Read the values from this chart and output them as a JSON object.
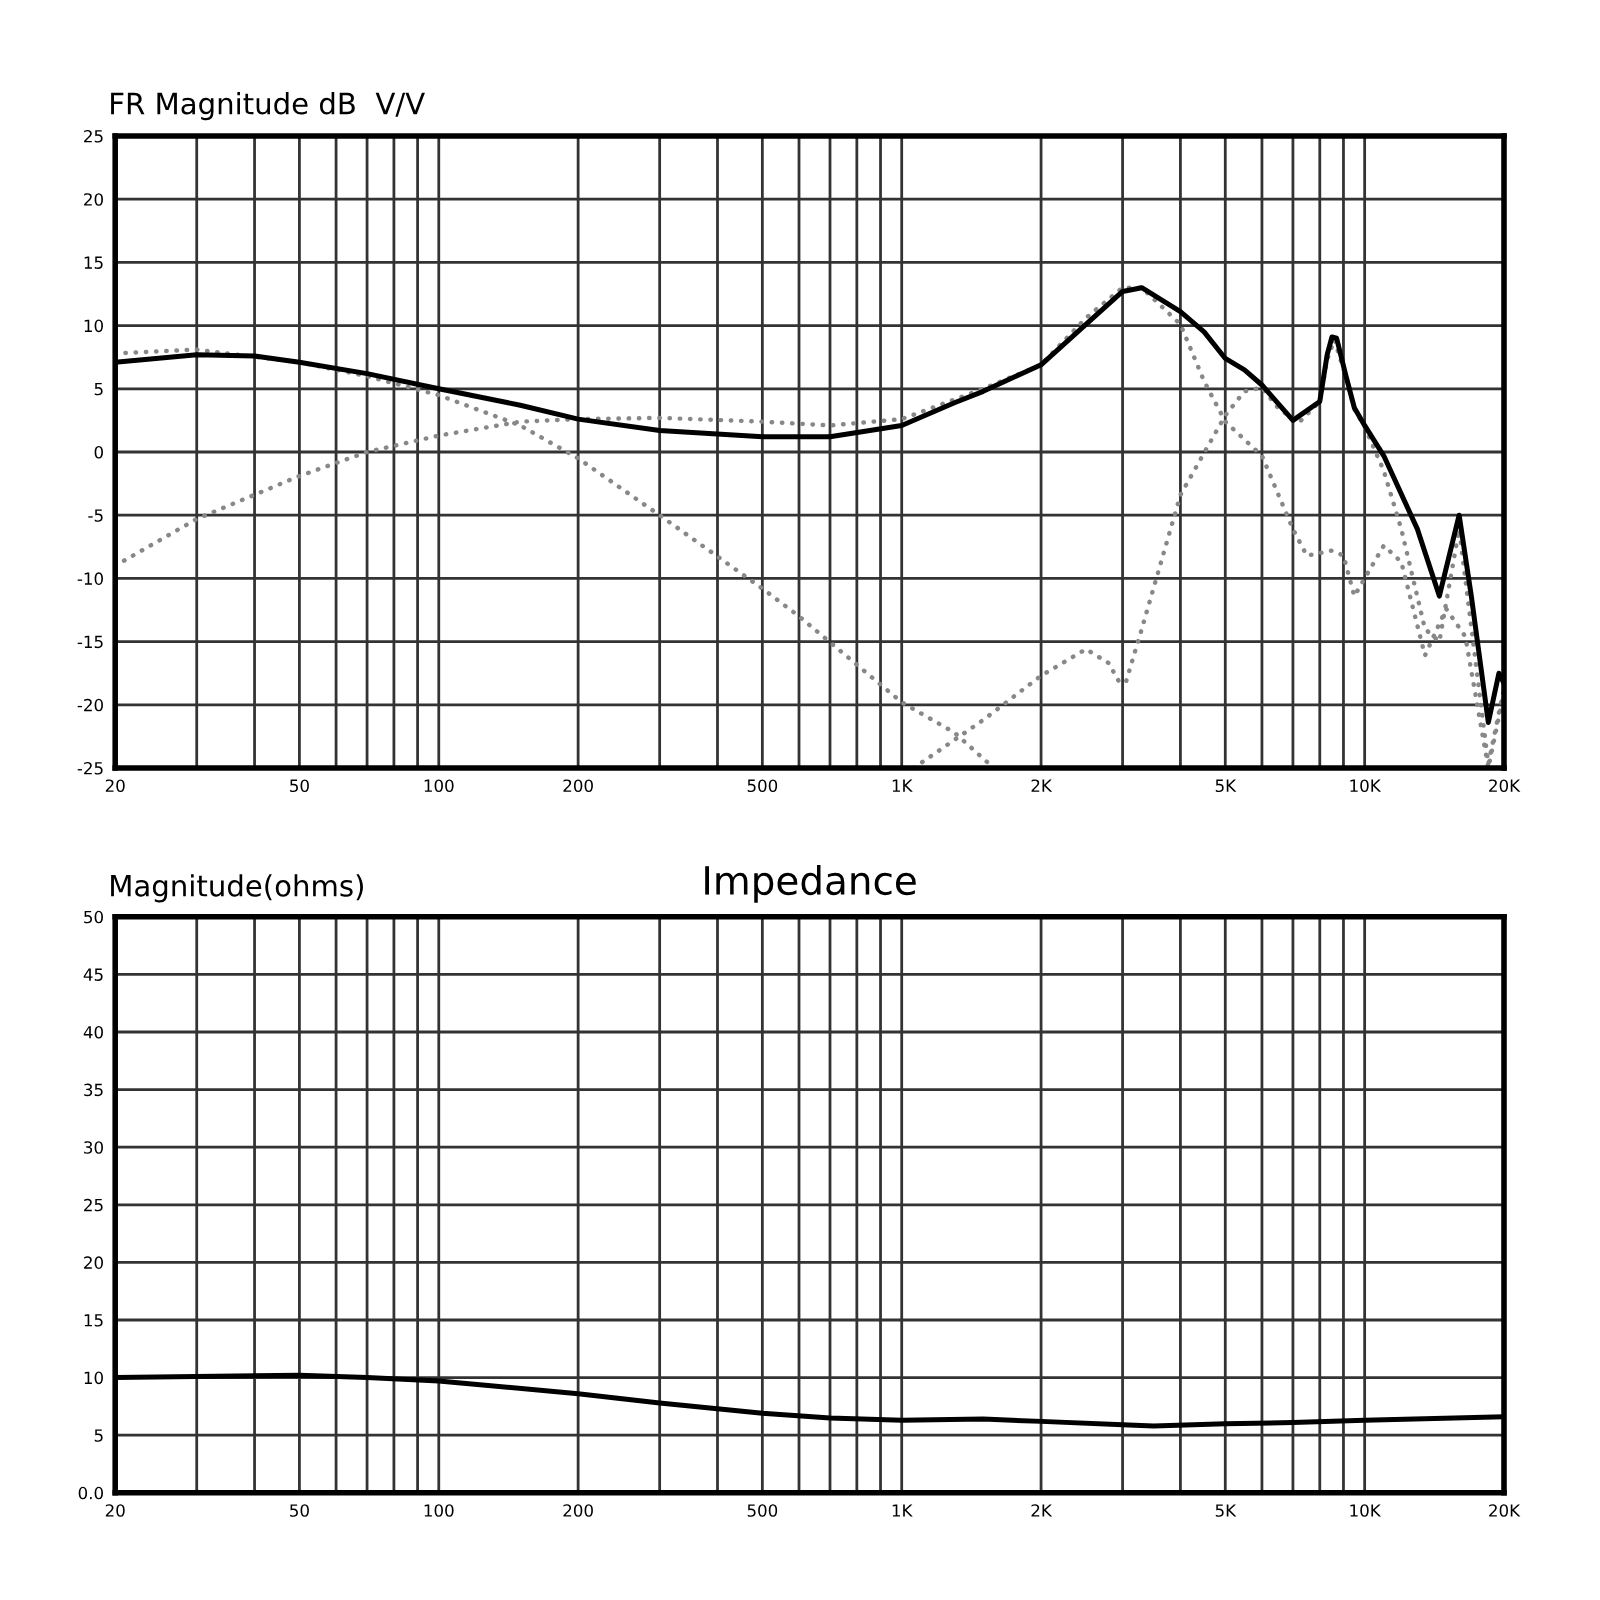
{
  "chart_data": [
    {
      "type": "line",
      "ylabel": "FR Magnitude dB  V/V",
      "log": "x",
      "grid": true,
      "xlim": [
        20,
        20000
      ],
      "ylim": [
        -25,
        25
      ],
      "xticks": [
        20,
        {
          "value": 30,
          "label": null
        },
        {
          "value": 40,
          "label": null
        },
        50,
        {
          "value": 60,
          "label": null
        },
        {
          "value": 70,
          "label": null
        },
        {
          "value": 80,
          "label": null
        },
        {
          "value": 90,
          "label": null
        },
        100,
        200,
        {
          "value": 300,
          "label": null
        },
        {
          "value": 400,
          "label": null
        },
        500,
        {
          "value": 600,
          "label": null
        },
        {
          "value": 700,
          "label": null
        },
        {
          "value": 800,
          "label": null
        },
        {
          "value": 900,
          "label": null
        },
        {
          "value": 1000,
          "label": "1K"
        },
        {
          "value": 2000,
          "label": "2K"
        },
        {
          "value": 3000,
          "label": null
        },
        {
          "value": 4000,
          "label": null
        },
        {
          "value": 5000,
          "label": "5K"
        },
        {
          "value": 6000,
          "label": null
        },
        {
          "value": 7000,
          "label": null
        },
        {
          "value": 8000,
          "label": null
        },
        {
          "value": 9000,
          "label": null
        },
        {
          "value": 10000,
          "label": "10K"
        },
        {
          "value": 20000,
          "label": "20K"
        }
      ],
      "yticks": [
        25,
        20,
        15,
        10,
        5,
        0,
        -5,
        -10,
        -15,
        -20,
        -25
      ],
      "series": [
        {
          "color": "#888888",
          "line_style": "dotted",
          "x": [
            20,
            30,
            50,
            70,
            100,
            150,
            200,
            300,
            500,
            600,
            1000,
            1300,
            1580
          ],
          "values": [
            7.8,
            8.1,
            7.1,
            6.0,
            4.5,
            2.1,
            -0.5,
            -5.0,
            -10.8,
            -13.0,
            -19.8,
            -22.2,
            -25
          ]
        },
        {
          "color": "#888888",
          "line_style": "dotted",
          "x": [
            20,
            30,
            50,
            70,
            100,
            150,
            200,
            300,
            500,
            700,
            1000,
            1500,
            2000,
            2500,
            3000,
            3300,
            4000,
            4500,
            5000,
            6000,
            7000,
            7500,
            8500,
            9000,
            9500,
            11000,
            12000,
            13500,
            15000,
            16500,
            18500,
            20000
          ],
          "values": [
            -9.0,
            -5.3,
            -1.9,
            0,
            1.3,
            2.4,
            2.6,
            2.7,
            2.4,
            2.1,
            2.6,
            5.0,
            6.9,
            10.6,
            13.0,
            13.0,
            10.1,
            5.6,
            2.4,
            -0.3,
            -6.1,
            -8.2,
            -7.8,
            -8.2,
            -11.4,
            -7.4,
            -8.7,
            -16.1,
            -12.4,
            -14.6,
            -25,
            -19.0
          ]
        },
        {
          "color": "#888888",
          "line_style": "dotted",
          "x": [
            1062,
            1500,
            2000,
            2500,
            2800,
            2950,
            3050,
            3300,
            4000,
            5000,
            5500,
            6000,
            6500,
            7200,
            8000,
            8300,
            8600,
            9100,
            9500,
            10000,
            11000,
            12000,
            13500,
            14500,
            16000,
            18500,
            20000
          ],
          "values": [
            -25,
            -21.2,
            -17.7,
            -15.6,
            -16.7,
            -18.2,
            -18.2,
            -14.0,
            -3.4,
            2.9,
            4.8,
            5.1,
            3.5,
            2.3,
            4.0,
            7.3,
            8.9,
            6.0,
            3.4,
            2.0,
            -1.5,
            -6.1,
            -14.0,
            -15.0,
            -6.1,
            -24.7,
            -18.7
          ]
        },
        {
          "color": "#000000",
          "line_style": "solid",
          "x": [
            20,
            30,
            40,
            50,
            70,
            100,
            150,
            200,
            300,
            500,
            700,
            1000,
            1300,
            1500,
            2000,
            2500,
            3000,
            3300,
            4000,
            4500,
            5000,
            5500,
            6000,
            7000,
            8000,
            8300,
            8500,
            8700,
            9100,
            9500,
            10000,
            11000,
            13000,
            14500,
            16000,
            17000,
            18500,
            19500,
            20000
          ],
          "values": [
            7.1,
            7.7,
            7.6,
            7.1,
            6.2,
            5.0,
            3.7,
            2.6,
            1.7,
            1.2,
            1.2,
            2.1,
            3.9,
            4.8,
            6.9,
            10.1,
            12.7,
            13.0,
            11.1,
            9.5,
            7.4,
            6.5,
            5.3,
            2.5,
            4.0,
            7.7,
            9.1,
            9.0,
            6.1,
            3.5,
            2.1,
            -0.3,
            -6.1,
            -11.4,
            -5.0,
            -11.4,
            -21.4,
            -17.5,
            -18.3
          ]
        }
      ]
    },
    {
      "type": "line",
      "title": "Impedance",
      "ylabel": "Magnitude(ohms)",
      "log": "x",
      "grid": true,
      "xlim": [
        20,
        20000
      ],
      "ylim": [
        0,
        50
      ],
      "xticks": [
        20,
        {
          "value": 30,
          "label": null
        },
        {
          "value": 40,
          "label": null
        },
        50,
        {
          "value": 60,
          "label": null
        },
        {
          "value": 70,
          "label": null
        },
        {
          "value": 80,
          "label": null
        },
        {
          "value": 90,
          "label": null
        },
        100,
        200,
        {
          "value": 300,
          "label": null
        },
        {
          "value": 400,
          "label": null
        },
        500,
        {
          "value": 600,
          "label": null
        },
        {
          "value": 700,
          "label": null
        },
        {
          "value": 800,
          "label": null
        },
        {
          "value": 900,
          "label": null
        },
        {
          "value": 1000,
          "label": "1K"
        },
        {
          "value": 2000,
          "label": "2K"
        },
        {
          "value": 3000,
          "label": null
        },
        {
          "value": 4000,
          "label": null
        },
        {
          "value": 5000,
          "label": "5K"
        },
        {
          "value": 6000,
          "label": null
        },
        {
          "value": 7000,
          "label": null
        },
        {
          "value": 8000,
          "label": null
        },
        {
          "value": 9000,
          "label": null
        },
        {
          "value": 10000,
          "label": "10K"
        },
        {
          "value": 20000,
          "label": "20K"
        }
      ],
      "yticks": [
        {
          "value": 0,
          "label": "0.0"
        },
        5,
        10,
        15,
        20,
        25,
        30,
        35,
        40,
        45,
        50
      ],
      "series": [
        {
          "color": "#000000",
          "line_style": "solid",
          "x": [
            20,
            50,
            70,
            100,
            200,
            300,
            500,
            700,
            1000,
            1500,
            2000,
            3000,
            3500,
            5000,
            7000,
            10000,
            20000
          ],
          "values": [
            10.0,
            10.2,
            10.0,
            9.7,
            8.6,
            7.8,
            6.9,
            6.5,
            6.3,
            6.4,
            6.2,
            5.9,
            5.8,
            6.0,
            6.1,
            6.3,
            6.6
          ]
        }
      ]
    }
  ]
}
